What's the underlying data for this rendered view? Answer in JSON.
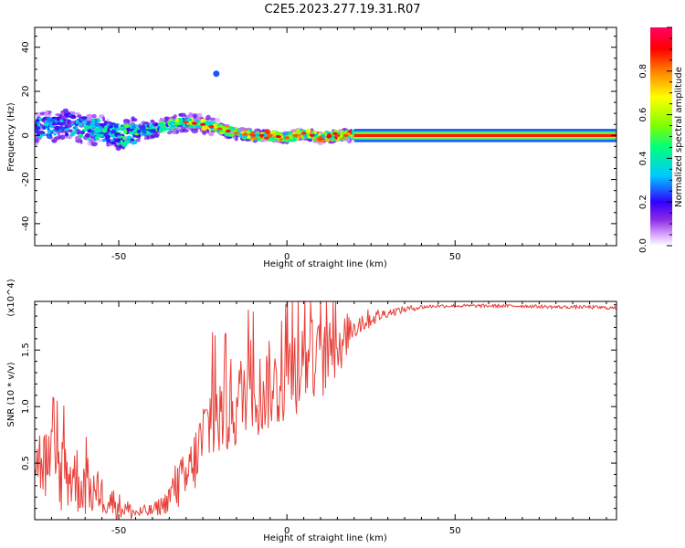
{
  "figure_title": "C2E5.2023.277.19.31.R07",
  "chart_data": [
    {
      "type": "heatmap",
      "title": "",
      "xlabel": "Height of straight line (km)",
      "ylabel": "Frequency (Hz)",
      "xlim": [
        -75,
        98
      ],
      "ylim": [
        -50,
        49
      ],
      "x_ticks": [
        -50,
        0,
        50
      ],
      "y_ticks": [
        -40,
        -20,
        0,
        20,
        40
      ],
      "colorbar": {
        "label": "Normalized spectral amplitude",
        "range": [
          0.0,
          1.0
        ],
        "ticks": [
          0.0,
          0.2,
          0.4,
          0.6,
          0.8
        ],
        "colormap": [
          "#ffffff",
          "#d9a6ff",
          "#8a2be2",
          "#3300ff",
          "#00c8ff",
          "#00ff80",
          "#7fff00",
          "#ffff00",
          "#ff8000",
          "#ff0000",
          "#ff0066"
        ]
      },
      "ridge": {
        "description_points_x": [
          -74,
          -65,
          -55,
          -48,
          -40,
          -30,
          -25,
          -20,
          -15,
          -10,
          -5,
          0,
          5,
          10,
          15,
          20,
          40,
          60,
          80,
          98
        ],
        "frequency_y": [
          3,
          5,
          2,
          0,
          3,
          6,
          5,
          3,
          1,
          0,
          0,
          -1,
          1,
          -1,
          0,
          0,
          0,
          0,
          0,
          0
        ],
        "amplitude": [
          0.4,
          0.4,
          0.45,
          0.5,
          0.55,
          0.7,
          0.75,
          0.8,
          0.85,
          0.85,
          0.9,
          0.8,
          0.85,
          0.9,
          0.95,
          1.0,
          1.0,
          1.0,
          1.0,
          1.0
        ]
      },
      "outlier_point": {
        "x": -21,
        "y": 28,
        "amplitude": 0.25
      }
    },
    {
      "type": "line",
      "title": "",
      "xlabel": "Height of straight line (km)",
      "ylabel": "SNR (10 * v/v)",
      "y_scale_label": "(x10^4)",
      "xlim": [
        -75,
        98
      ],
      "ylim": [
        0,
        1.93
      ],
      "x_ticks": [
        -50,
        0,
        50
      ],
      "y_ticks": [
        0.5,
        1.0,
        1.5
      ],
      "series": [
        {
          "color": "#e8403a",
          "x": [
            -75,
            -70,
            -65,
            -60,
            -55,
            -50,
            -45,
            -40,
            -36,
            -33,
            -30,
            -27,
            -24,
            -22,
            -20,
            -17,
            -14,
            -11,
            -8,
            -5,
            -2,
            1,
            4,
            7,
            10,
            13,
            16,
            19,
            22,
            25,
            30,
            35,
            40,
            45,
            50,
            60,
            70,
            80,
            90,
            98
          ],
          "y": [
            0.55,
            0.45,
            0.42,
            0.3,
            0.22,
            0.12,
            0.06,
            0.08,
            0.15,
            0.3,
            0.35,
            0.55,
            0.8,
            0.95,
            0.9,
            1.0,
            1.05,
            1.25,
            1.1,
            1.2,
            1.15,
            1.35,
            1.35,
            1.45,
            1.4,
            1.45,
            1.55,
            1.7,
            1.75,
            1.78,
            1.83,
            1.86,
            1.88,
            1.89,
            1.89,
            1.89,
            1.89,
            1.88,
            1.88,
            1.87
          ],
          "noise": [
            0.3,
            0.4,
            0.35,
            0.28,
            0.18,
            0.12,
            0.06,
            0.06,
            0.1,
            0.22,
            0.25,
            0.3,
            0.4,
            0.45,
            0.4,
            0.45,
            0.4,
            0.4,
            0.4,
            0.4,
            0.35,
            0.45,
            0.4,
            0.35,
            0.35,
            0.3,
            0.25,
            0.15,
            0.12,
            0.08,
            0.04,
            0.03,
            0.02,
            0.015,
            0.015,
            0.015,
            0.015,
            0.015,
            0.015,
            0.015
          ]
        }
      ]
    }
  ]
}
